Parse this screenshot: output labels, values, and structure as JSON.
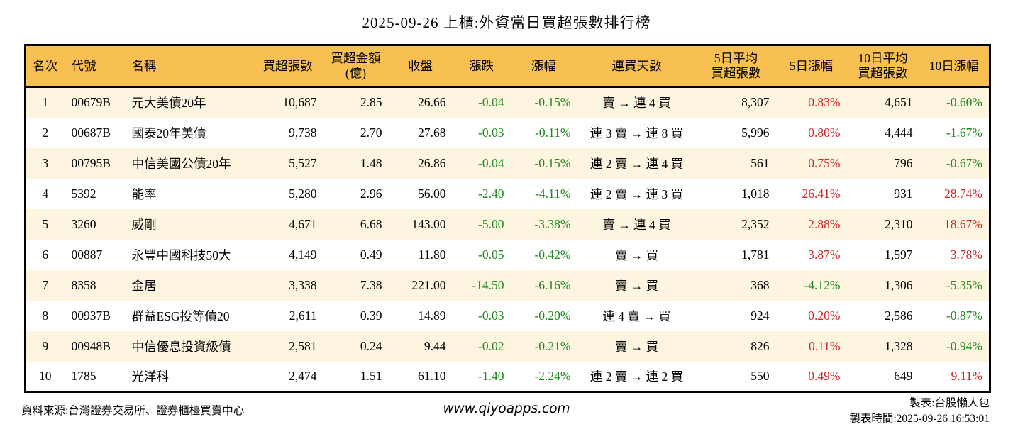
{
  "title": "2025-09-26 上櫃:外資當日買超張數排行榜",
  "chart_data": {
    "type": "table",
    "title": "2025-09-26 上櫃:外資當日買超張數排行榜",
    "columns": [
      "名次",
      "代號",
      "名稱",
      "買超張數",
      "買超金額(億)",
      "收盤",
      "漲跌",
      "漲幅",
      "連買天數",
      "5日平均買超張數",
      "5日漲幅",
      "10日平均買超張數",
      "10日漲幅"
    ],
    "header_display": [
      "名次",
      "代號",
      "名稱",
      "買超張數",
      "買超金額\n(億)",
      "收盤",
      "漲跌",
      "漲幅",
      "連買天數",
      "5日平均\n買超張數",
      "5日漲幅",
      "10日平均\n買超張數",
      "10日漲幅"
    ],
    "rows": [
      {
        "rank": "1",
        "code": "00679B",
        "name": "元大美債20年",
        "net_buy_volume": "10,687",
        "net_buy_amount": "2.85",
        "close": "26.66",
        "change": "-0.04",
        "change_pct": "-0.15%",
        "streak": "賣 → 連 4 買",
        "avg5_volume": "8,307",
        "pct5": "0.83%",
        "avg10_volume": "4,651",
        "pct10": "-0.60%"
      },
      {
        "rank": "2",
        "code": "00687B",
        "name": "國泰20年美債",
        "net_buy_volume": "9,738",
        "net_buy_amount": "2.70",
        "close": "27.68",
        "change": "-0.03",
        "change_pct": "-0.11%",
        "streak": "連 3 賣 → 連 8 買",
        "avg5_volume": "5,996",
        "pct5": "0.80%",
        "avg10_volume": "4,444",
        "pct10": "-1.67%"
      },
      {
        "rank": "3",
        "code": "00795B",
        "name": "中信美國公債20年",
        "net_buy_volume": "5,527",
        "net_buy_amount": "1.48",
        "close": "26.86",
        "change": "-0.04",
        "change_pct": "-0.15%",
        "streak": "連 2 賣 → 連 4 買",
        "avg5_volume": "561",
        "pct5": "0.75%",
        "avg10_volume": "796",
        "pct10": "-0.67%"
      },
      {
        "rank": "4",
        "code": "5392",
        "name": "能率",
        "net_buy_volume": "5,280",
        "net_buy_amount": "2.96",
        "close": "56.00",
        "change": "-2.40",
        "change_pct": "-4.11%",
        "streak": "連 2 賣 → 連 3 買",
        "avg5_volume": "1,018",
        "pct5": "26.41%",
        "avg10_volume": "931",
        "pct10": "28.74%"
      },
      {
        "rank": "5",
        "code": "3260",
        "name": "威剛",
        "net_buy_volume": "4,671",
        "net_buy_amount": "6.68",
        "close": "143.00",
        "change": "-5.00",
        "change_pct": "-3.38%",
        "streak": "賣 → 連 4 買",
        "avg5_volume": "2,352",
        "pct5": "2.88%",
        "avg10_volume": "2,310",
        "pct10": "18.67%"
      },
      {
        "rank": "6",
        "code": "00887",
        "name": "永豐中國科技50大",
        "net_buy_volume": "4,149",
        "net_buy_amount": "0.49",
        "close": "11.80",
        "change": "-0.05",
        "change_pct": "-0.42%",
        "streak": "賣 → 買",
        "avg5_volume": "1,781",
        "pct5": "3.87%",
        "avg10_volume": "1,597",
        "pct10": "3.78%"
      },
      {
        "rank": "7",
        "code": "8358",
        "name": "金居",
        "net_buy_volume": "3,338",
        "net_buy_amount": "7.38",
        "close": "221.00",
        "change": "-14.50",
        "change_pct": "-6.16%",
        "streak": "賣 → 買",
        "avg5_volume": "368",
        "pct5": "-4.12%",
        "avg10_volume": "1,306",
        "pct10": "-5.35%"
      },
      {
        "rank": "8",
        "code": "00937B",
        "name": "群益ESG投等債20",
        "net_buy_volume": "2,611",
        "net_buy_amount": "0.39",
        "close": "14.89",
        "change": "-0.03",
        "change_pct": "-0.20%",
        "streak": "連 4 賣 → 買",
        "avg5_volume": "924",
        "pct5": "0.20%",
        "avg10_volume": "2,586",
        "pct10": "-0.87%"
      },
      {
        "rank": "9",
        "code": "00948B",
        "name": "中信優息投資級債",
        "net_buy_volume": "2,581",
        "net_buy_amount": "0.24",
        "close": "9.44",
        "change": "-0.02",
        "change_pct": "-0.21%",
        "streak": "賣 → 買",
        "avg5_volume": "826",
        "pct5": "0.11%",
        "avg10_volume": "1,328",
        "pct10": "-0.94%"
      },
      {
        "rank": "10",
        "code": "1785",
        "name": "光洋科",
        "net_buy_volume": "2,474",
        "net_buy_amount": "1.51",
        "close": "61.10",
        "change": "-1.40",
        "change_pct": "-2.24%",
        "streak": "連 2 賣 → 連 2 買",
        "avg5_volume": "550",
        "pct5": "0.49%",
        "avg10_volume": "649",
        "pct10": "9.11%"
      }
    ]
  },
  "footer": {
    "source": "資料來源:台灣證券交易所、證券櫃檯買賣中心",
    "website": "www.qiyoapps.com",
    "author": "製表:台股懶人包",
    "generated_at": "製表時間:2025-09-26 16:53:01"
  },
  "colors": {
    "header_bg": "#f8c050",
    "stripe_bg": "#fdf5e0",
    "up_red": "#cf2526",
    "down_green": "#1e8a1e",
    "border": "#000000"
  }
}
